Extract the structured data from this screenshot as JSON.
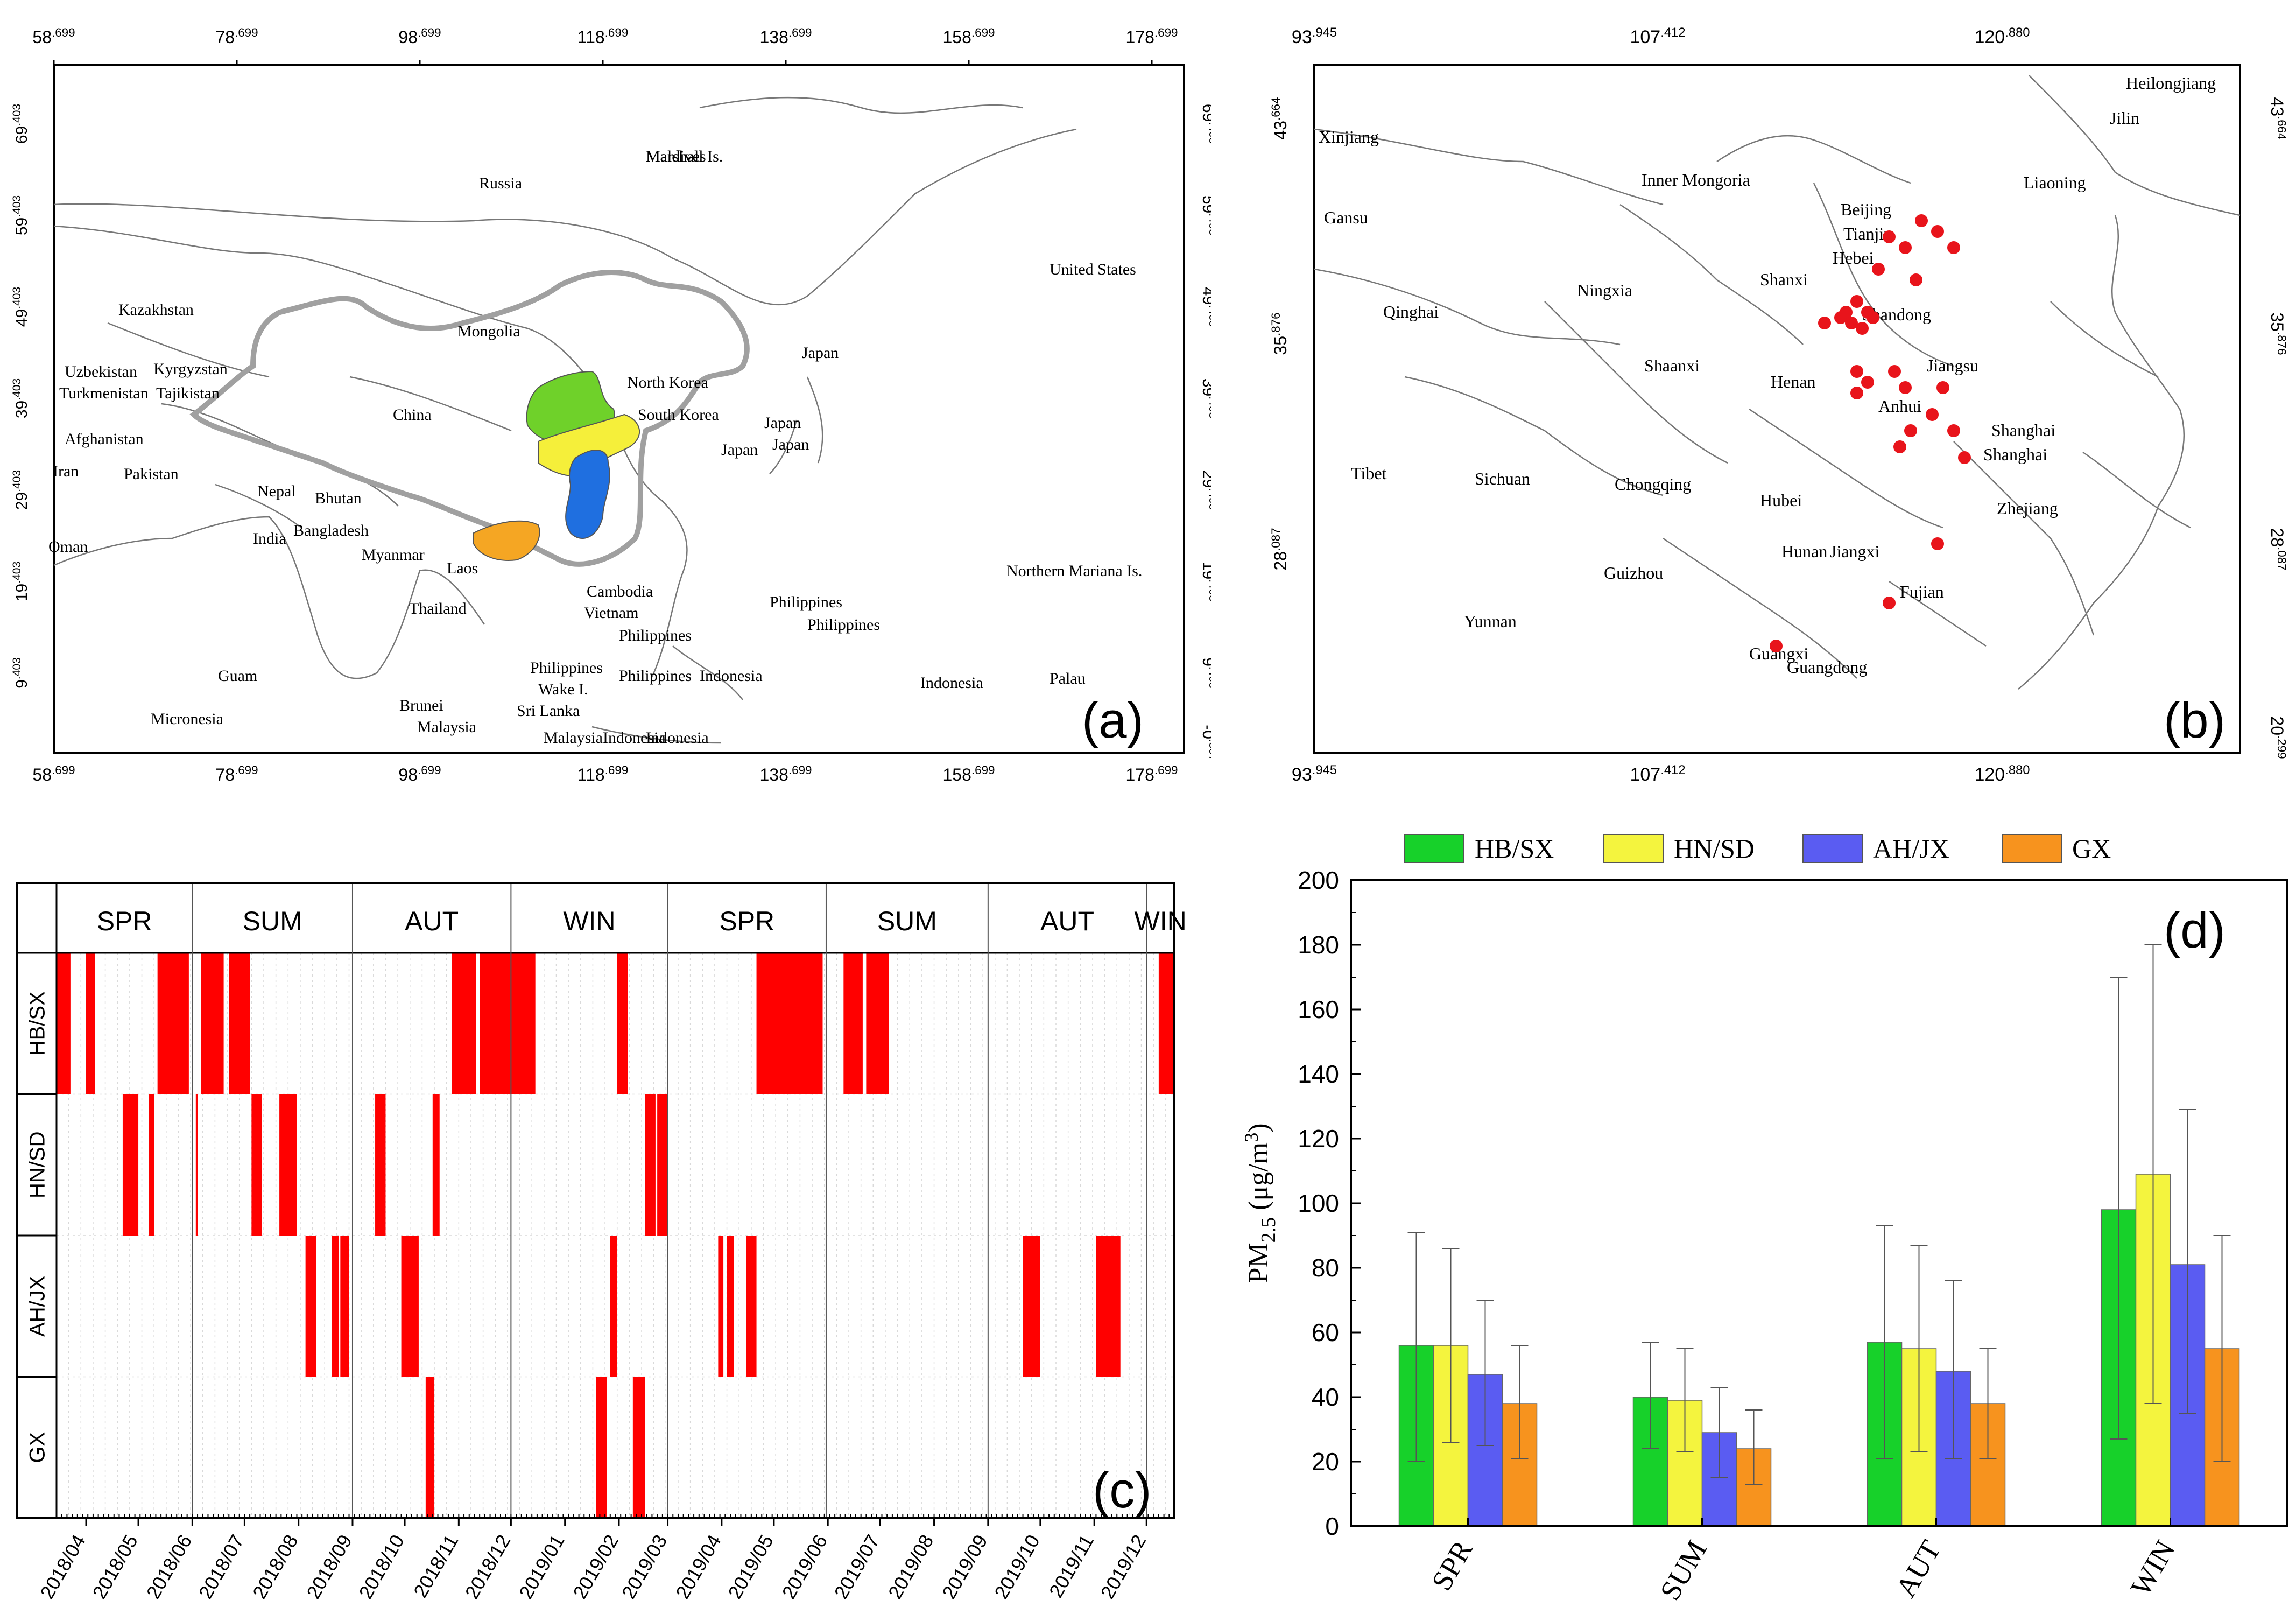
{
  "panel_a": {
    "label": "(a)",
    "x_ticks": [
      {
        "base": "58",
        "exp": ".699"
      },
      {
        "base": "78",
        "exp": ".699"
      },
      {
        "base": "98",
        "exp": ".699"
      },
      {
        "base": "118",
        "exp": ".699"
      },
      {
        "base": "138",
        "exp": ".699"
      },
      {
        "base": "158",
        "exp": ".699"
      },
      {
        "base": "178",
        "exp": ".699"
      }
    ],
    "y_ticks": [
      {
        "base": "69",
        "exp": ".403"
      },
      {
        "base": "59",
        "exp": ".403"
      },
      {
        "base": "49",
        "exp": ".403"
      },
      {
        "base": "39",
        "exp": ".403"
      },
      {
        "base": "29",
        "exp": ".403"
      },
      {
        "base": "19",
        "exp": ".403"
      },
      {
        "base": "9",
        "exp": ".403"
      }
    ],
    "y_bottom_right": {
      "base": "-0",
      "exp": ".597"
    },
    "places": [
      "Russia",
      "United States",
      "Kazakhstan",
      "Mongolia",
      "Uzbekistan",
      "Kyrgyzstan",
      "Turkmenistan",
      "Tajikistan",
      "North Korea",
      "South Korea",
      "Japan",
      "Japan",
      "Japan",
      "Japan",
      "China",
      "Afghanistan",
      "Iran",
      "Pakistan",
      "Nepal",
      "Bhutan",
      "Bangladesh",
      "India",
      "Oman",
      "Myanmar",
      "Laos",
      "Thailand",
      "Cambodia",
      "Vietnam",
      "Philippines",
      "Philippines",
      "Philippines",
      "Philippines",
      "Philippines",
      "Northern Mariana Is.",
      "Guam",
      "Wake I.",
      "Sri Lanka",
      "Brunei",
      "Malaysia",
      "Malaysia",
      "Indonesia",
      "Indonesia",
      "Indonesia",
      "Indonesia",
      "Palau",
      "Micronesia",
      "Marshall Is.",
      "Maldives"
    ],
    "region_colors": {
      "HB/SX": "#6fd12a",
      "HN/SD": "#f5ef3a",
      "AH/JX": "#1f6fe0",
      "GX": "#f5a623"
    }
  },
  "panel_b": {
    "label": "(b)",
    "x_ticks": [
      {
        "base": "93",
        "exp": ".945"
      },
      {
        "base": "107",
        "exp": ".412"
      },
      {
        "base": "120",
        "exp": ".880"
      }
    ],
    "y_ticks": [
      {
        "base": "43",
        "exp": ".664"
      },
      {
        "base": "35",
        "exp": ".876"
      },
      {
        "base": "28",
        "exp": ".087"
      }
    ],
    "y_bottom_right": {
      "base": "20",
      "exp": ".299"
    },
    "provinces": [
      "Heilongjiang",
      "Jilin",
      "Xinjiang",
      "Inner Mongoria",
      "Liaoning",
      "Gansu",
      "Beijing",
      "Tianjin",
      "Hebei",
      "Qinghai",
      "Ningxia",
      "Shanxi",
      "Shandong",
      "Shaanxi",
      "Henan",
      "Jiangsu",
      "Anhui",
      "Shanghai",
      "Shanghai",
      "Tibet",
      "Sichuan",
      "Chongqing",
      "Hubei",
      "Zhejiang",
      "Hunan",
      "Jiangxi",
      "Guizhou",
      "Fujian",
      "Yunnan",
      "Guangxi",
      "Guangdong"
    ],
    "site_color": "#e8141b"
  },
  "chart_data": [
    {
      "type": "heatmap",
      "panel_label": "(c)",
      "title": "",
      "season_labels": [
        "SPR",
        "SUM",
        "AUT",
        "WIN",
        "SPR",
        "SUM",
        "AUT",
        "WIN"
      ],
      "row_labels": [
        "HB/SX",
        "HN/SD",
        "AH/JX",
        "GX"
      ],
      "x_ticks": [
        "2018/04",
        "2018/05",
        "2018/06",
        "2018/07",
        "2018/08",
        "2018/09",
        "2018/10",
        "2018/11",
        "2018/12",
        "2019/01",
        "2019/02",
        "2019/03",
        "2019/04",
        "2019/05",
        "2019/06",
        "2019/07",
        "2019/08",
        "2019/09",
        "2019/10",
        "2019/11",
        "2019/12"
      ],
      "x_range_days": [
        0,
        642
      ],
      "day0": "2018-03-15",
      "season_boundaries_days": [
        0,
        78,
        170,
        261,
        351,
        442,
        535,
        626,
        642
      ],
      "color": "#ff0000",
      "events": [
        {
          "row": 0,
          "start": 0,
          "end": 8
        },
        {
          "row": 0,
          "start": 17,
          "end": 22
        },
        {
          "row": 0,
          "start": 58,
          "end": 76
        },
        {
          "row": 0,
          "start": 83,
          "end": 96
        },
        {
          "row": 0,
          "start": 99,
          "end": 111
        },
        {
          "row": 0,
          "start": 227,
          "end": 241
        },
        {
          "row": 0,
          "start": 243,
          "end": 275
        },
        {
          "row": 0,
          "start": 322,
          "end": 328
        },
        {
          "row": 0,
          "start": 402,
          "end": 440
        },
        {
          "row": 0,
          "start": 452,
          "end": 463
        },
        {
          "row": 0,
          "start": 465,
          "end": 478
        },
        {
          "row": 0,
          "start": 633,
          "end": 642
        },
        {
          "row": 1,
          "start": 38,
          "end": 47
        },
        {
          "row": 1,
          "start": 53,
          "end": 56
        },
        {
          "row": 1,
          "start": 80,
          "end": 81
        },
        {
          "row": 1,
          "start": 112,
          "end": 118
        },
        {
          "row": 1,
          "start": 128,
          "end": 138
        },
        {
          "row": 1,
          "start": 183,
          "end": 189
        },
        {
          "row": 1,
          "start": 216,
          "end": 220
        },
        {
          "row": 1,
          "start": 338,
          "end": 344
        },
        {
          "row": 1,
          "start": 345,
          "end": 351
        },
        {
          "row": 2,
          "start": 143,
          "end": 149
        },
        {
          "row": 2,
          "start": 158,
          "end": 162
        },
        {
          "row": 2,
          "start": 163,
          "end": 168
        },
        {
          "row": 2,
          "start": 198,
          "end": 208
        },
        {
          "row": 2,
          "start": 318,
          "end": 322
        },
        {
          "row": 2,
          "start": 380,
          "end": 383
        },
        {
          "row": 2,
          "start": 385,
          "end": 389
        },
        {
          "row": 2,
          "start": 396,
          "end": 402
        },
        {
          "row": 2,
          "start": 555,
          "end": 565
        },
        {
          "row": 2,
          "start": 597,
          "end": 611
        },
        {
          "row": 3,
          "start": 212,
          "end": 217
        },
        {
          "row": 3,
          "start": 310,
          "end": 316
        },
        {
          "row": 3,
          "start": 331,
          "end": 338
        }
      ]
    },
    {
      "type": "bar",
      "panel_label": "(d)",
      "title": "",
      "xlabel": "",
      "ylabel_main": "PM",
      "ylabel_sub": "2.5",
      "ylabel_unit": " (μg/m",
      "ylabel_sup": "3",
      "ylabel_close": ")",
      "ylim": [
        0,
        200
      ],
      "yticks": [
        0,
        20,
        40,
        60,
        80,
        100,
        120,
        140,
        160,
        180,
        200
      ],
      "categories": [
        "SPR",
        "SUM",
        "AUT",
        "WIN"
      ],
      "series": [
        {
          "name": "HB/SX",
          "color": "#17d12a",
          "values": [
            56,
            40,
            57,
            98
          ],
          "err_low": [
            20,
            24,
            21,
            27
          ],
          "err_high": [
            91,
            57,
            93,
            170
          ]
        },
        {
          "name": "HN/SD",
          "color": "#f4f43e",
          "values": [
            56,
            39,
            55,
            109
          ],
          "err_low": [
            26,
            23,
            23,
            38
          ],
          "err_high": [
            86,
            55,
            87,
            180
          ]
        },
        {
          "name": "AH/JX",
          "color": "#5a5cf2",
          "values": [
            47,
            29,
            48,
            81
          ],
          "err_low": [
            25,
            15,
            21,
            35
          ],
          "err_high": [
            70,
            43,
            76,
            129
          ]
        },
        {
          "name": "GX",
          "color": "#f7931e",
          "values": [
            38,
            24,
            38,
            55
          ],
          "err_low": [
            21,
            13,
            21,
            20
          ],
          "err_high": [
            56,
            36,
            55,
            90
          ]
        }
      ],
      "legend_position": "top"
    }
  ]
}
